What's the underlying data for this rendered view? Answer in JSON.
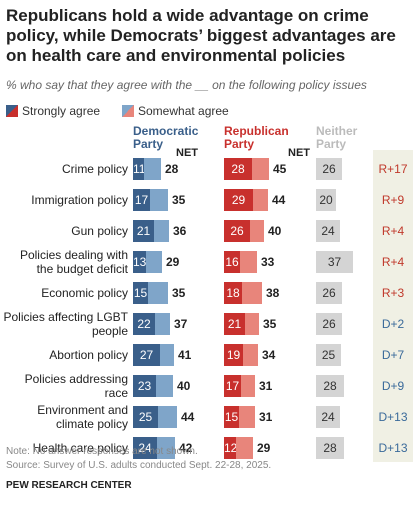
{
  "title": "Republicans hold a wide advantage on crime policy, while Democrats’ biggest advantages are on health care and environmental policies",
  "subtitle": "% who say that they agree with the __ on the following policy issues",
  "legend": {
    "strong": "Strongly agree",
    "somewhat": "Somewhat agree"
  },
  "columns": {
    "dem": "Democratic Party",
    "rep": "Republican Party",
    "neither": "Neither Party",
    "net": "NET"
  },
  "colors": {
    "dem_strong": "#3a5f8a",
    "dem_somewhat": "#7fa5c9",
    "rep_strong": "#c8302d",
    "rep_somewhat": "#e8857b",
    "neither": "#d4d4d4",
    "rep_adv": "#c0392b",
    "dem_adv": "#3a6a9a"
  },
  "chart_data": {
    "type": "bar",
    "categories": [
      "Crime policy",
      "Immigration policy",
      "Gun policy",
      "Policies dealing with the budget deficit",
      "Economic policy",
      "Policies affecting LGBT people",
      "Abortion policy",
      "Policies addressing race",
      "Environment and climate policy",
      "Health care policy"
    ],
    "series": [
      {
        "name": "Democratic Party – Strongly agree",
        "values": [
          11,
          17,
          21,
          13,
          15,
          22,
          27,
          23,
          25,
          24
        ]
      },
      {
        "name": "Democratic Party – NET",
        "values": [
          28,
          35,
          36,
          29,
          35,
          37,
          41,
          40,
          44,
          42
        ]
      },
      {
        "name": "Republican Party – Strongly agree",
        "values": [
          28,
          29,
          26,
          16,
          18,
          21,
          19,
          17,
          15,
          12
        ]
      },
      {
        "name": "Republican Party – NET",
        "values": [
          45,
          44,
          40,
          33,
          38,
          35,
          34,
          31,
          31,
          29
        ]
      },
      {
        "name": "Neither Party",
        "values": [
          26,
          20,
          24,
          37,
          26,
          26,
          25,
          28,
          24,
          28
        ]
      }
    ],
    "differences": [
      "R+17",
      "R+9",
      "R+4",
      "R+4",
      "R+3",
      "D+2",
      "D+7",
      "D+9",
      "D+13",
      "D+13"
    ]
  },
  "notes": {
    "note": "Note: No answer responses are not shown.",
    "source": "Source: Survey of U.S. adults conducted Sept. 22-28, 2025.",
    "credit": "PEW RESEARCH CENTER"
  }
}
